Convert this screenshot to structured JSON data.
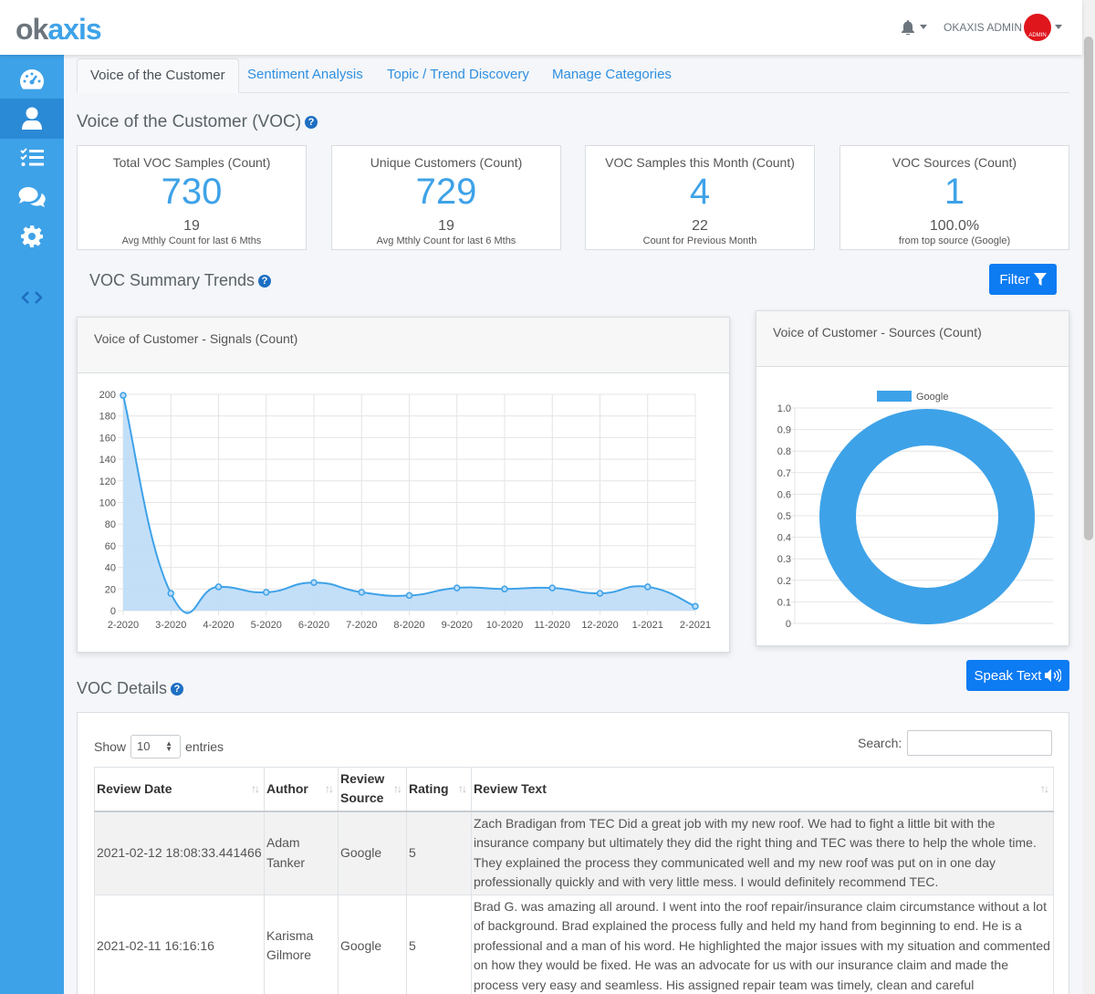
{
  "brand": {
    "logo_ok": "ok",
    "logo_axis": "axis"
  },
  "header": {
    "user_name": "OKAXIS ADMIN",
    "avatar_text": "ADMIN",
    "bell_icon": "bell-icon"
  },
  "sidebar": {
    "items": [
      "dashboard-icon",
      "user-icon",
      "checklist-icon",
      "chat-icon",
      "gear-icon",
      "code-icon"
    ],
    "active_index": 1
  },
  "tabs": [
    "Voice of the Customer",
    "Sentiment Analysis",
    "Topic / Trend Discovery",
    "Manage Categories"
  ],
  "page_title": "Voice of the Customer (VOC)",
  "kpis": [
    {
      "label": "Total VOC Samples (Count)",
      "value": "730",
      "sub": "19",
      "note": "Avg Mthly Count for last 6 Mths"
    },
    {
      "label": "Unique Customers (Count)",
      "value": "729",
      "sub": "19",
      "note": "Avg Mthly Count for last 6 Mths"
    },
    {
      "label": "VOC Samples this Month (Count)",
      "value": "4",
      "sub": "22",
      "note": "Count for Previous Month"
    },
    {
      "label": "VOC Sources (Count)",
      "value": "1",
      "sub": "100.0%",
      "note": "from top source (Google)"
    }
  ],
  "trends_title": "VOC Summary Trends",
  "filter_label": "Filter",
  "signals_chart": {
    "title": "Voice of Customer - Signals (Count)"
  },
  "sources_chart": {
    "title": "Voice of Customer - Sources (Count)"
  },
  "speak_label": "Speak Text",
  "details": {
    "title": "VOC Details",
    "show_label": "Show",
    "entries_label": "entries",
    "page_size": "10",
    "search_label": "Search:",
    "columns": [
      "Review Date",
      "Author",
      "Review Source",
      "Rating",
      "Review Text"
    ],
    "rows": [
      {
        "date": "2021-02-12 18:08:33.441466",
        "author": "Adam Tanker",
        "source": "Google",
        "rating": "5",
        "text": "Zach Bradigan from TEC Did a great job with my new roof. We had to fight a little bit with the insurance company but ultimately they did the right thing and TEC was there to help the whole time. They explained the process they communicated well and my new roof was put on in one day professionally quickly and with very little mess. I would definitely recommend TEC."
      },
      {
        "date": "2021-02-11 16:16:16",
        "author": "Karisma Gilmore",
        "source": "Google",
        "rating": "5",
        "text": "Brad G. was amazing all around. I went into the roof repair/insurance claim circumstance without a lot of background. Brad explained the process fully and held my hand from beginning to end. He is a professional and a man of his word. He highlighted the major issues with my situation and commented on how they would be fixed. He was an advocate for us with our insurance claim and made the process very easy and seamless. His assigned repair team was timely, clean and careful"
      }
    ]
  },
  "chart_data": [
    {
      "type": "area",
      "title": "Voice of Customer - Signals (Count)",
      "categories": [
        "2-2020",
        "3-2020",
        "4-2020",
        "5-2020",
        "6-2020",
        "7-2020",
        "8-2020",
        "9-2020",
        "10-2020",
        "11-2020",
        "12-2020",
        "1-2021",
        "2-2021"
      ],
      "values": [
        199,
        16,
        22,
        17,
        26,
        17,
        14,
        21,
        20,
        21,
        16,
        22,
        4
      ],
      "ylim": [
        0,
        200
      ],
      "yticks": [
        0,
        20,
        40,
        60,
        80,
        100,
        120,
        140,
        160,
        180,
        200
      ],
      "grid": true,
      "color": "#3ea2e8",
      "fill": "#bcdcf7"
    },
    {
      "type": "pie",
      "variant": "doughnut",
      "title": "Voice of Customer - Sources (Count)",
      "categories": [
        "Google"
      ],
      "values": [
        1
      ],
      "legend": "top",
      "ylim": [
        0,
        1
      ],
      "yticks": [
        "0",
        "0.1",
        "0.2",
        "0.3",
        "0.4",
        "0.5",
        "0.6",
        "0.7",
        "0.8",
        "0.9",
        "1.0"
      ],
      "color": "#3ea2e8"
    }
  ]
}
